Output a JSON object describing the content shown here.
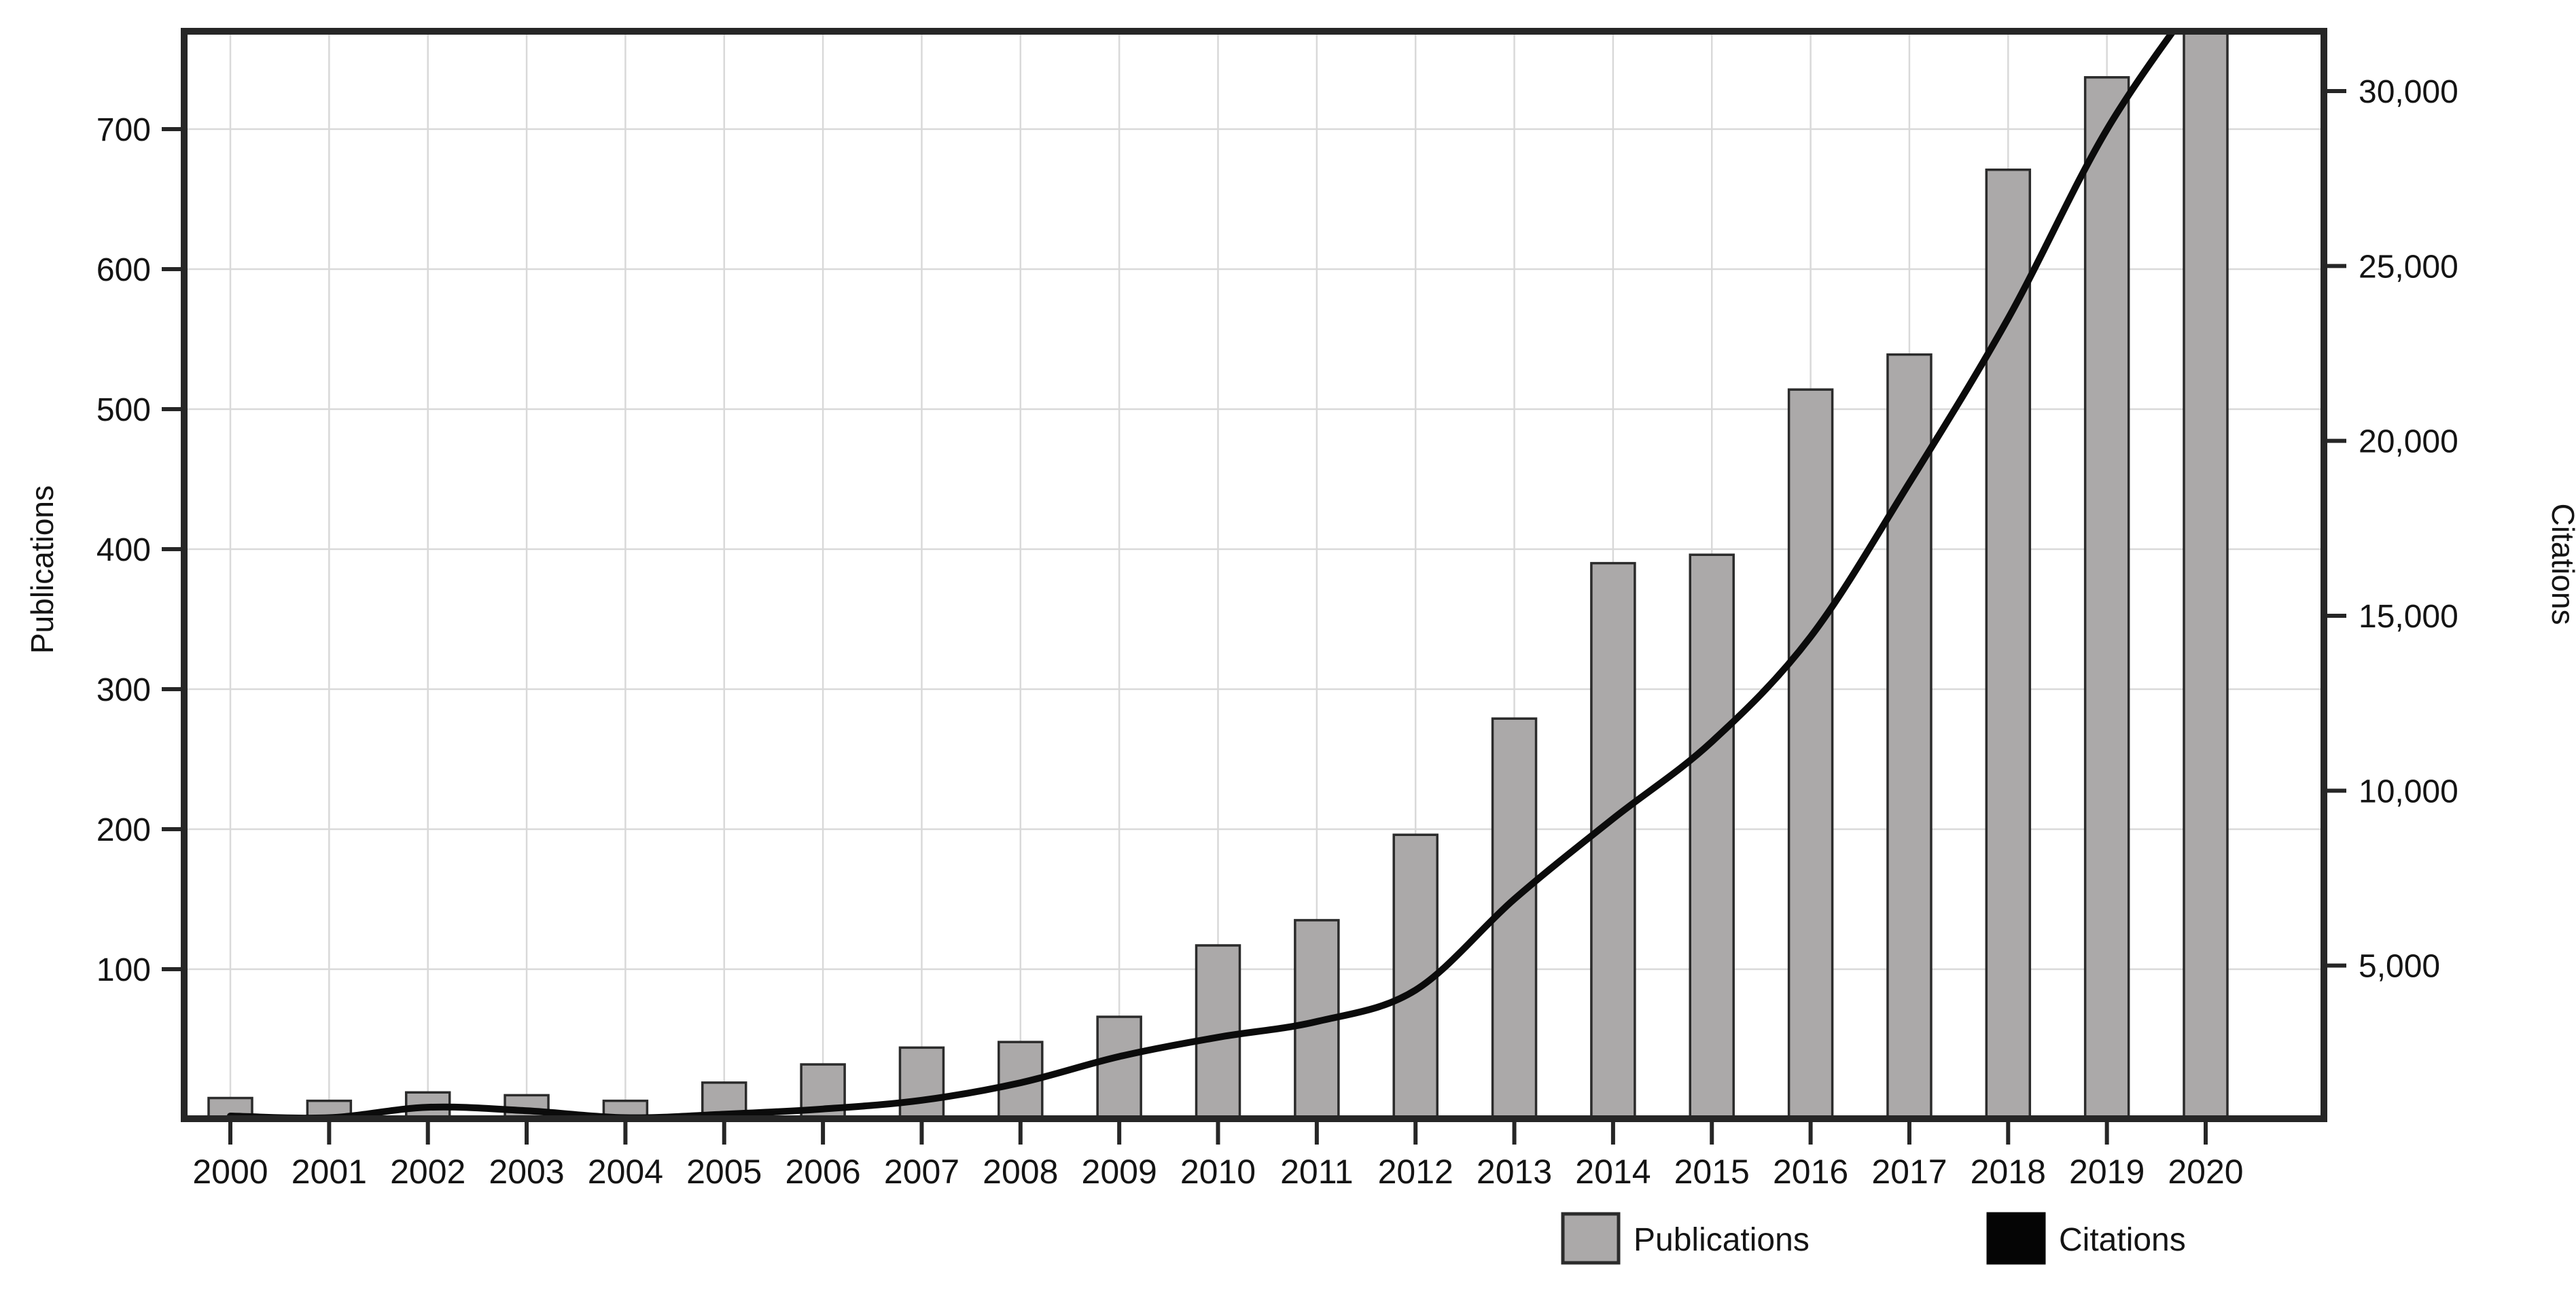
{
  "chart_data": {
    "type": "combo_bar_line",
    "title": "",
    "categories": [
      "2000",
      "2001",
      "2002",
      "2003",
      "2004",
      "2005",
      "2006",
      "2007",
      "2008",
      "2009",
      "2010",
      "2011",
      "2012",
      "2013",
      "2014",
      "2015",
      "2016",
      "2017",
      "2018",
      "2019",
      "2020"
    ],
    "series": [
      {
        "name": "Publications",
        "type": "bar",
        "axis": "left",
        "color": "#ABA9A9",
        "border_color": "#2b2b2b",
        "values": [
          8,
          6,
          12,
          10,
          6,
          19,
          32,
          44,
          48,
          66,
          117,
          135,
          196,
          279,
          390,
          396,
          514,
          539,
          671,
          737,
          775
        ]
      },
      {
        "name": "Citations",
        "type": "line",
        "axis": "right",
        "color": "#0b0b0b",
        "clipped_at_axis_top": true,
        "values": [
          700,
          650,
          950,
          850,
          650,
          750,
          900,
          1150,
          1650,
          2400,
          2950,
          3400,
          4300,
          6900,
          9200,
          11400,
          14400,
          18800,
          23500,
          28900,
          33000
        ]
      }
    ],
    "axes": {
      "left": {
        "label": "Publications",
        "tick_values": [
          100,
          200,
          300,
          400,
          500,
          600,
          700
        ],
        "tick_labels": [
          "100",
          "200",
          "300",
          "400",
          "500",
          "600",
          "700"
        ],
        "approx_max": 778
      },
      "right": {
        "label": "Citations",
        "tick_values": [
          5000,
          10000,
          15000,
          20000,
          25000,
          30000
        ],
        "tick_labels": [
          "5,000",
          "10,000",
          "15,000",
          "20,000",
          "25,000",
          "30,000"
        ],
        "approx_max": 31900
      },
      "bottom": {
        "tick_labels": [
          "2000",
          "2001",
          "2002",
          "2003",
          "2004",
          "2005",
          "2006",
          "2007",
          "2008",
          "2009",
          "2010",
          "2011",
          "2012",
          "2013",
          "2014",
          "2015",
          "2016",
          "2017",
          "2018",
          "2019",
          "2020"
        ]
      }
    },
    "legend": {
      "position": "bottom",
      "items": [
        {
          "label": "Publications",
          "swatch_color": "#ABA9A9",
          "swatch_border": "#2b2b2b"
        },
        {
          "label": "Citations",
          "swatch_color": "#050505",
          "swatch_border": "#050505"
        }
      ]
    },
    "grid": true,
    "background": "#ffffff",
    "frame_color": "#262626",
    "gridline_color": "#d9d9d9",
    "tick_color": "#262626"
  }
}
